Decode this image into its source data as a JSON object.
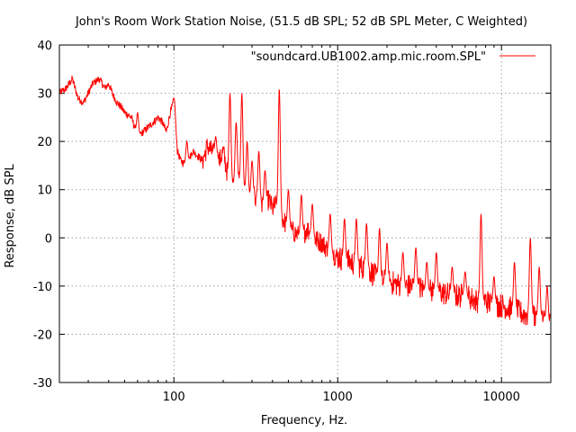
{
  "chart_data": {
    "type": "line",
    "title": "John's Room Work Station Noise, (51.5 dB SPL; 52 dB SPL Meter, C Weighted)",
    "xlabel": "Frequency, Hz.",
    "ylabel": "Response, dB SPL",
    "xscale": "log",
    "xlim": [
      20,
      20000
    ],
    "ylim": [
      -30,
      40
    ],
    "x_ticks": [
      100,
      1000,
      10000
    ],
    "x_tick_labels": [
      "100",
      "1000",
      "10000"
    ],
    "y_ticks": [
      -30,
      -20,
      -10,
      0,
      10,
      20,
      30,
      40
    ],
    "y_tick_labels": [
      "-30",
      "-20",
      "-10",
      "0",
      "10",
      "20",
      "30",
      "40"
    ],
    "grid": true,
    "legend": {
      "position": "top-right"
    },
    "series": [
      {
        "name": "\"soundcard.UB1002.amp.mic.room.SPL\"",
        "color": "#ff0000",
        "x": [
          20,
          22,
          24,
          26,
          28,
          30,
          32,
          35,
          38,
          40,
          42,
          45,
          48,
          50,
          55,
          60,
          65,
          70,
          75,
          80,
          85,
          90,
          95,
          100,
          105,
          110,
          120,
          130,
          140,
          150,
          160,
          170,
          180,
          190,
          200,
          210,
          220,
          230,
          240,
          250,
          260,
          270,
          280,
          300,
          320,
          340,
          360,
          380,
          400,
          420,
          440,
          460,
          480,
          500,
          550,
          600,
          650,
          700,
          800,
          900,
          1000,
          1200,
          1400,
          1600,
          1800,
          2000,
          2500,
          3000,
          3500,
          4000,
          5000,
          6000,
          7000,
          8000,
          9000,
          10000,
          12000,
          14000,
          16000,
          18000,
          20000
        ],
        "values": [
          30,
          31,
          33,
          29,
          28,
          30,
          32,
          33,
          31,
          32,
          30,
          28,
          27,
          26,
          25,
          21,
          22,
          23,
          24,
          25,
          24,
          22,
          26,
          28,
          18,
          16,
          15,
          18,
          17,
          16,
          19,
          18,
          17,
          16,
          18,
          14,
          12,
          11,
          13,
          12,
          11,
          10,
          9,
          9,
          8,
          7,
          7,
          8,
          6,
          7,
          5,
          4,
          3,
          2,
          1,
          0,
          2,
          0,
          -1,
          -3,
          -4,
          -5,
          -6,
          -7,
          -9,
          -9,
          -10,
          -10,
          -11,
          -11,
          -12,
          -12,
          -13,
          -13,
          -14,
          -14,
          -15,
          -16,
          -16,
          -17,
          -18
        ],
        "peaks": [
          {
            "x": 60,
            "y": 26
          },
          {
            "x": 100,
            "y": 29
          },
          {
            "x": 120,
            "y": 20
          },
          {
            "x": 180,
            "y": 21
          },
          {
            "x": 220,
            "y": 30
          },
          {
            "x": 240,
            "y": 24
          },
          {
            "x": 260,
            "y": 30
          },
          {
            "x": 280,
            "y": 20
          },
          {
            "x": 300,
            "y": 16
          },
          {
            "x": 330,
            "y": 18
          },
          {
            "x": 360,
            "y": 14
          },
          {
            "x": 440,
            "y": 31
          },
          {
            "x": 500,
            "y": 10
          },
          {
            "x": 600,
            "y": 9
          },
          {
            "x": 700,
            "y": 7
          },
          {
            "x": 900,
            "y": 5
          },
          {
            "x": 1100,
            "y": 4
          },
          {
            "x": 1300,
            "y": 4
          },
          {
            "x": 1500,
            "y": 3
          },
          {
            "x": 1800,
            "y": 2
          },
          {
            "x": 2000,
            "y": -1
          },
          {
            "x": 2500,
            "y": -3
          },
          {
            "x": 3000,
            "y": -2
          },
          {
            "x": 3500,
            "y": -5
          },
          {
            "x": 4000,
            "y": -3
          },
          {
            "x": 5000,
            "y": -6
          },
          {
            "x": 6000,
            "y": -7
          },
          {
            "x": 7500,
            "y": 5
          },
          {
            "x": 9000,
            "y": -8
          },
          {
            "x": 12000,
            "y": -5
          },
          {
            "x": 15000,
            "y": 0
          },
          {
            "x": 17000,
            "y": -6
          },
          {
            "x": 19000,
            "y": -10
          }
        ]
      }
    ]
  }
}
